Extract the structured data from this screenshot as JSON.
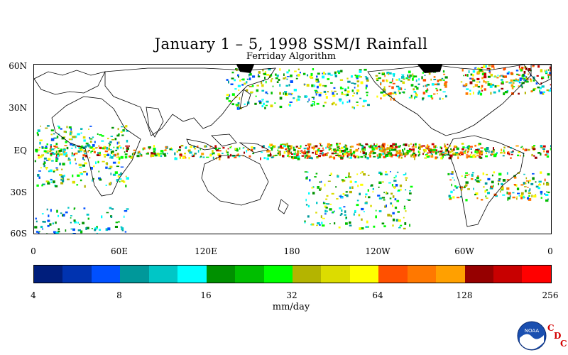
{
  "title": "January 1 – 5, 1998 SSM/I Rainfall",
  "subtitle": "Ferriday Algorithm",
  "map": {
    "lat_labels": [
      "60N",
      "30N",
      "EQ",
      "30S",
      "60S"
    ],
    "lon_labels": [
      "0",
      "60E",
      "120E",
      "180",
      "120W",
      "60W",
      "0"
    ],
    "land_color": "#000000",
    "background_color": "#ffffff"
  },
  "colorbar": {
    "colors": [
      "#001e7c",
      "#0033b0",
      "#0050ff",
      "#00989a",
      "#00c6c6",
      "#00ffff",
      "#009000",
      "#00be00",
      "#00ff00",
      "#b4b400",
      "#dcdc00",
      "#ffff00",
      "#ff5000",
      "#ff7800",
      "#ffa000",
      "#960000",
      "#c80000",
      "#ff0000"
    ],
    "labels": [
      "4",
      "8",
      "16",
      "32",
      "64",
      "128",
      "256"
    ],
    "units": "mm/day"
  },
  "logo": {
    "name": "NOAA",
    "letters": [
      "C",
      "D",
      "C"
    ]
  }
}
